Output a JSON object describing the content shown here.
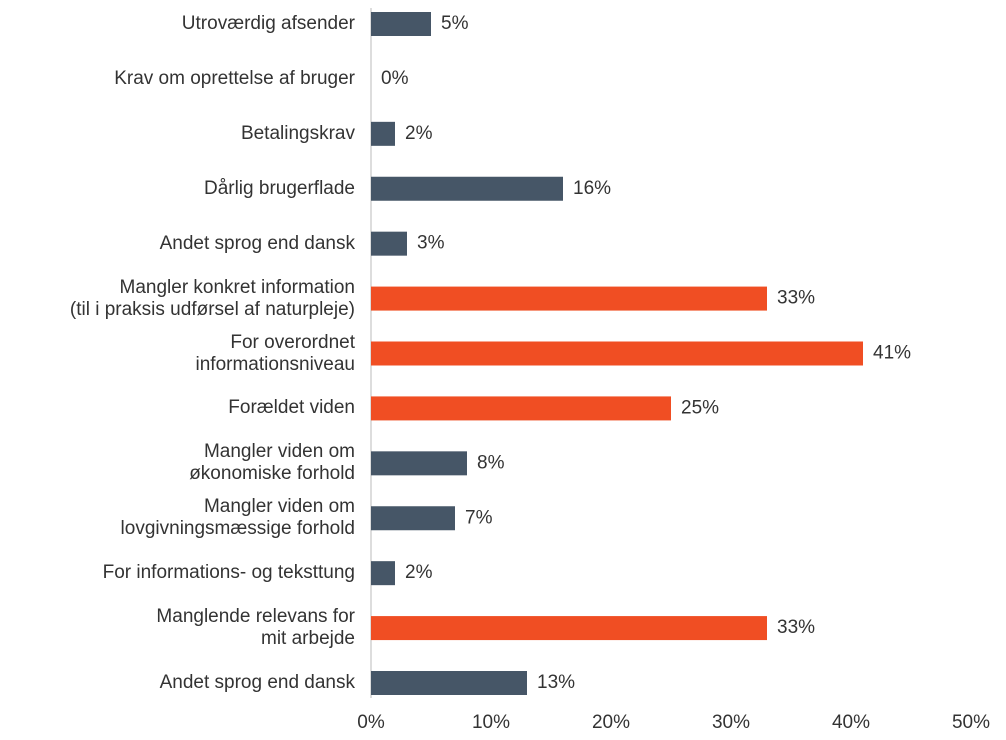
{
  "chart_data": {
    "type": "barh",
    "categories": [
      "Utroværdig afsender",
      "Krav om oprettelse af bruger",
      "Betalingskrav",
      "Dårlig brugerflade",
      "Andet sprog end dansk",
      "Mangler konkret information\n(til i praksis udførsel af naturpleje)",
      "For overordnet\ninformationsniveau",
      "Forældet viden",
      "Mangler viden om\nøkonomiske forhold",
      "Mangler viden om\nlovgivningsmæssige forhold",
      "For informations- og teksttung",
      "Manglende relevans for\nmit arbejde",
      "Andet sprog end dansk"
    ],
    "values": [
      5,
      0,
      2,
      16,
      3,
      33,
      41,
      25,
      8,
      7,
      2,
      33,
      13
    ],
    "value_labels": [
      "5%",
      "0%",
      "2%",
      "16%",
      "3%",
      "33%",
      "41%",
      "25%",
      "8%",
      "7%",
      "2%",
      "33%",
      "13%"
    ],
    "colors": [
      "#465667",
      "#465667",
      "#465667",
      "#465667",
      "#465667",
      "#f04e23",
      "#f04e23",
      "#f04e23",
      "#465667",
      "#465667",
      "#465667",
      "#f04e23",
      "#465667"
    ],
    "xlim": [
      0,
      50
    ],
    "xticks": [
      {
        "value": 0,
        "label": "0%"
      },
      {
        "value": 10,
        "label": "10%"
      },
      {
        "value": 20,
        "label": "20%"
      },
      {
        "value": 30,
        "label": "30%"
      },
      {
        "value": 40,
        "label": "40%"
      },
      {
        "value": 50,
        "label": "50%"
      }
    ],
    "grid": false
  }
}
